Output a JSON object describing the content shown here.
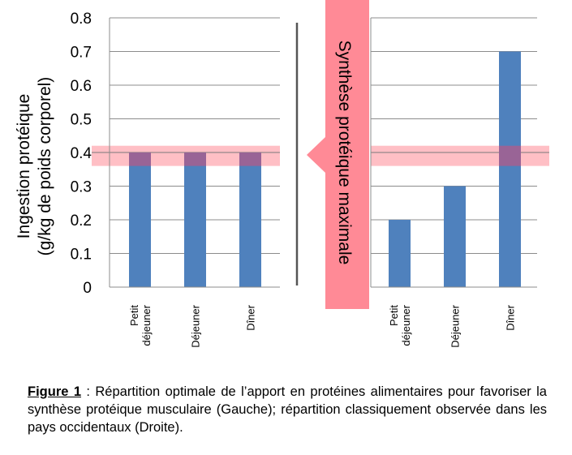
{
  "chart_data": {
    "type": "bar",
    "ylabel_line1": "Ingestion protéique",
    "ylabel_line2": "(g/kg de poids corporel)",
    "yticks": [
      "0",
      "0.1",
      "0.2",
      "0.3",
      "0.4",
      "0.5",
      "0.6",
      "0.7",
      "0.8"
    ],
    "ylim": [
      0,
      0.8
    ],
    "grid": true,
    "bar_color": "#4f81bd",
    "band_color": "#ff8a96",
    "reference_band": [
      0.36,
      0.42
    ],
    "reference_line": 0.4,
    "arrow_text": "Synthèse protéique maximale",
    "panels": [
      {
        "categories": [
          [
            "Petit",
            "déjeuner"
          ],
          [
            "Déjeuner"
          ],
          [
            "Dîner"
          ]
        ],
        "values": [
          0.4,
          0.4,
          0.4
        ]
      },
      {
        "categories": [
          [
            "Petit",
            "déjeuner"
          ],
          [
            "Déjeuner"
          ],
          [
            "Dîner"
          ]
        ],
        "values": [
          0.2,
          0.3,
          0.7
        ]
      }
    ]
  },
  "caption": {
    "label": "Figure 1",
    "text": " : Répartition optimale de l’apport en protéines alimentaires pour favoriser la synthèse protéique musculaire (Gauche); répartition classiquement observée dans les pays occidentaux (Droite)."
  }
}
